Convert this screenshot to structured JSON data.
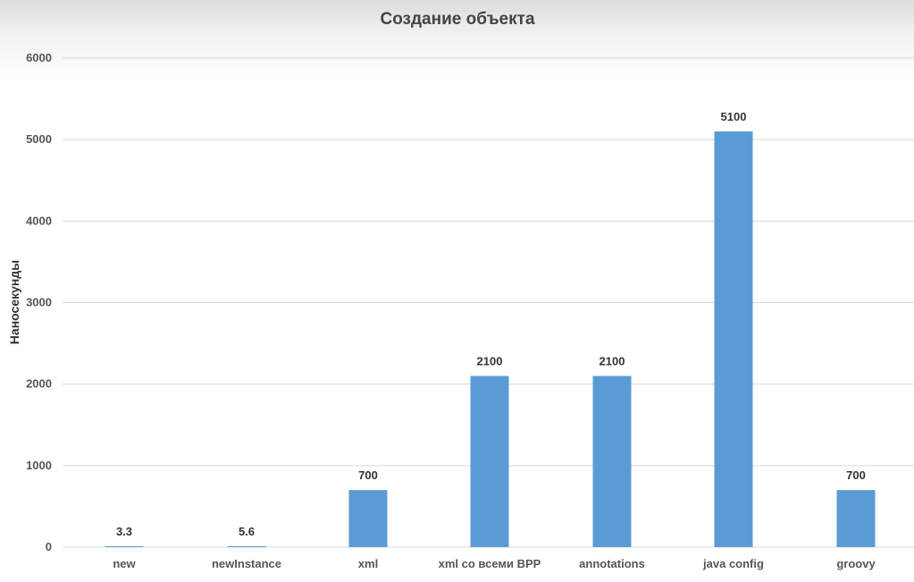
{
  "chart_data": {
    "type": "bar",
    "title": "Создание объекта",
    "xlabel": "",
    "ylabel": "Наносекунды",
    "ylim": [
      0,
      6000
    ],
    "yticks": [
      0,
      1000,
      2000,
      3000,
      4000,
      5000,
      6000
    ],
    "grid": true,
    "legend": "none",
    "bar_color": "#5b9bd5",
    "gridline_color": "#d9d9d9",
    "categories": [
      "new",
      "newInstance",
      "xml",
      "xml со всеми BPP",
      "annotations",
      "java config",
      "groovy"
    ],
    "values": [
      3.3,
      5.6,
      700,
      2100,
      2100,
      5100,
      700
    ],
    "value_labels": [
      "3.3",
      "5.6",
      "700",
      "2100",
      "2100",
      "5100",
      "700"
    ]
  }
}
